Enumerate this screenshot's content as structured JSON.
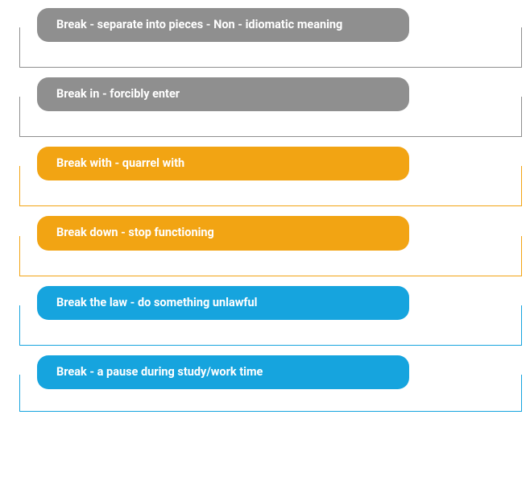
{
  "items": [
    {
      "label": "Break - separate into pieces - Non - idiomatic meaning",
      "pill_color": "#8f8f8f",
      "border_color": "#8f8f8f"
    },
    {
      "label": "Break in - forcibly enter",
      "pill_color": "#8f8f8f",
      "border_color": "#8f8f8f"
    },
    {
      "label": "Break with - quarrel with",
      "pill_color": "#f2a413",
      "border_color": "#f2a413"
    },
    {
      "label": "Break down - stop functioning",
      "pill_color": "#f2a413",
      "border_color": "#f2a413"
    },
    {
      "label": "Break the law - do something unlawful",
      "pill_color": "#16a4de",
      "border_color": "#16a4de"
    },
    {
      "label": "Break - a pause during study/work time",
      "pill_color": "#16a4de",
      "border_color": "#16a4de"
    }
  ],
  "style": {
    "pill_font_size": 14.5,
    "pill_font_weight": 700,
    "pill_text_color": "#ffffff",
    "pill_radius": 14,
    "background": "#ffffff"
  }
}
